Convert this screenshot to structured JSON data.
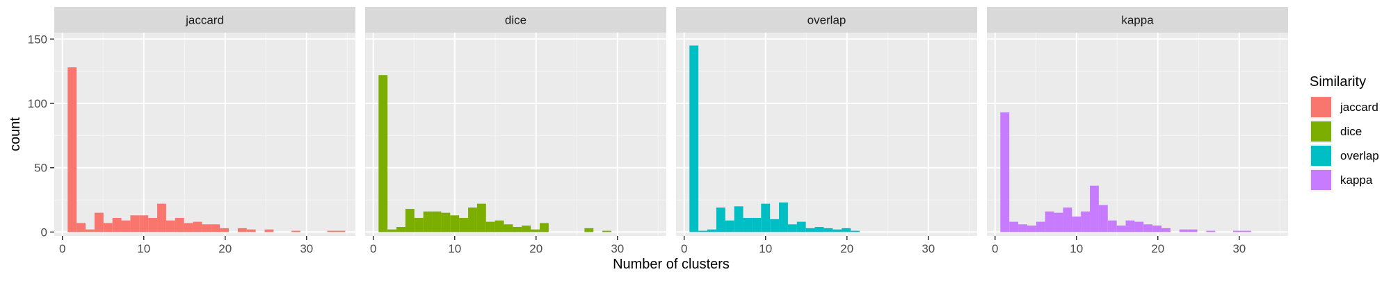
{
  "chart_data": {
    "type": "bar",
    "subtype": "faceted histogram",
    "xlabel": "Number of clusters",
    "ylabel": "count",
    "x_ticks": [
      0,
      10,
      20,
      30
    ],
    "y_ticks": [
      0,
      50,
      100,
      150
    ],
    "xlim": [
      -1,
      36
    ],
    "ylim": [
      -3,
      155
    ],
    "bin_width": 1.1,
    "legend": {
      "title": "Similarity",
      "position": "right",
      "entries": [
        "jaccard",
        "dice",
        "overlap",
        "kappa"
      ]
    },
    "series": [
      {
        "name": "jaccard",
        "color": "#F8766D",
        "bins": [
          {
            "x": 1.2,
            "count": 128
          },
          {
            "x": 2.3,
            "count": 7
          },
          {
            "x": 3.4,
            "count": 2
          },
          {
            "x": 4.5,
            "count": 15
          },
          {
            "x": 5.6,
            "count": 7
          },
          {
            "x": 6.7,
            "count": 11
          },
          {
            "x": 7.8,
            "count": 9
          },
          {
            "x": 8.9,
            "count": 13
          },
          {
            "x": 10.0,
            "count": 13
          },
          {
            "x": 11.1,
            "count": 11
          },
          {
            "x": 12.2,
            "count": 22
          },
          {
            "x": 13.3,
            "count": 9
          },
          {
            "x": 14.4,
            "count": 11
          },
          {
            "x": 15.5,
            "count": 7
          },
          {
            "x": 16.6,
            "count": 8
          },
          {
            "x": 17.7,
            "count": 6
          },
          {
            "x": 18.8,
            "count": 6
          },
          {
            "x": 19.9,
            "count": 3
          },
          {
            "x": 22.1,
            "count": 3
          },
          {
            "x": 23.2,
            "count": 2
          },
          {
            "x": 25.4,
            "count": 2
          },
          {
            "x": 28.7,
            "count": 1
          },
          {
            "x": 33.1,
            "count": 1
          },
          {
            "x": 34.2,
            "count": 1
          }
        ]
      },
      {
        "name": "dice",
        "color": "#7CAE00",
        "bins": [
          {
            "x": 1.2,
            "count": 122
          },
          {
            "x": 2.3,
            "count": 2
          },
          {
            "x": 3.4,
            "count": 4
          },
          {
            "x": 4.5,
            "count": 18
          },
          {
            "x": 5.6,
            "count": 11
          },
          {
            "x": 6.7,
            "count": 16
          },
          {
            "x": 7.8,
            "count": 16
          },
          {
            "x": 8.9,
            "count": 15
          },
          {
            "x": 10.0,
            "count": 13
          },
          {
            "x": 11.1,
            "count": 11
          },
          {
            "x": 12.2,
            "count": 19
          },
          {
            "x": 13.3,
            "count": 22
          },
          {
            "x": 14.4,
            "count": 8
          },
          {
            "x": 15.5,
            "count": 9
          },
          {
            "x": 16.6,
            "count": 6
          },
          {
            "x": 17.7,
            "count": 4
          },
          {
            "x": 18.8,
            "count": 5
          },
          {
            "x": 19.9,
            "count": 2
          },
          {
            "x": 21.0,
            "count": 7
          },
          {
            "x": 26.5,
            "count": 3
          },
          {
            "x": 28.7,
            "count": 1
          }
        ]
      },
      {
        "name": "overlap",
        "color": "#00BFC4",
        "bins": [
          {
            "x": 1.2,
            "count": 145
          },
          {
            "x": 2.3,
            "count": 1
          },
          {
            "x": 3.4,
            "count": 2
          },
          {
            "x": 4.5,
            "count": 19
          },
          {
            "x": 5.6,
            "count": 9
          },
          {
            "x": 6.7,
            "count": 20
          },
          {
            "x": 7.8,
            "count": 11
          },
          {
            "x": 8.9,
            "count": 11
          },
          {
            "x": 10.0,
            "count": 22
          },
          {
            "x": 11.1,
            "count": 10
          },
          {
            "x": 12.2,
            "count": 23
          },
          {
            "x": 13.3,
            "count": 6
          },
          {
            "x": 14.4,
            "count": 8
          },
          {
            "x": 15.5,
            "count": 3
          },
          {
            "x": 16.6,
            "count": 4
          },
          {
            "x": 17.7,
            "count": 3
          },
          {
            "x": 18.8,
            "count": 2
          },
          {
            "x": 19.9,
            "count": 3
          },
          {
            "x": 21.0,
            "count": 1
          }
        ]
      },
      {
        "name": "kappa",
        "color": "#C77CFF",
        "bins": [
          {
            "x": 1.2,
            "count": 93
          },
          {
            "x": 2.3,
            "count": 8
          },
          {
            "x": 3.4,
            "count": 6
          },
          {
            "x": 4.5,
            "count": 5
          },
          {
            "x": 5.6,
            "count": 8
          },
          {
            "x": 6.7,
            "count": 16
          },
          {
            "x": 7.8,
            "count": 15
          },
          {
            "x": 8.9,
            "count": 19
          },
          {
            "x": 10.0,
            "count": 12
          },
          {
            "x": 11.1,
            "count": 16
          },
          {
            "x": 12.2,
            "count": 36
          },
          {
            "x": 13.3,
            "count": 21
          },
          {
            "x": 14.4,
            "count": 9
          },
          {
            "x": 15.5,
            "count": 5
          },
          {
            "x": 16.6,
            "count": 9
          },
          {
            "x": 17.7,
            "count": 8
          },
          {
            "x": 18.8,
            "count": 6
          },
          {
            "x": 19.9,
            "count": 5
          },
          {
            "x": 21.0,
            "count": 3
          },
          {
            "x": 23.2,
            "count": 2
          },
          {
            "x": 24.3,
            "count": 2
          },
          {
            "x": 26.5,
            "count": 1
          },
          {
            "x": 29.8,
            "count": 1
          },
          {
            "x": 30.9,
            "count": 1
          }
        ]
      }
    ]
  }
}
